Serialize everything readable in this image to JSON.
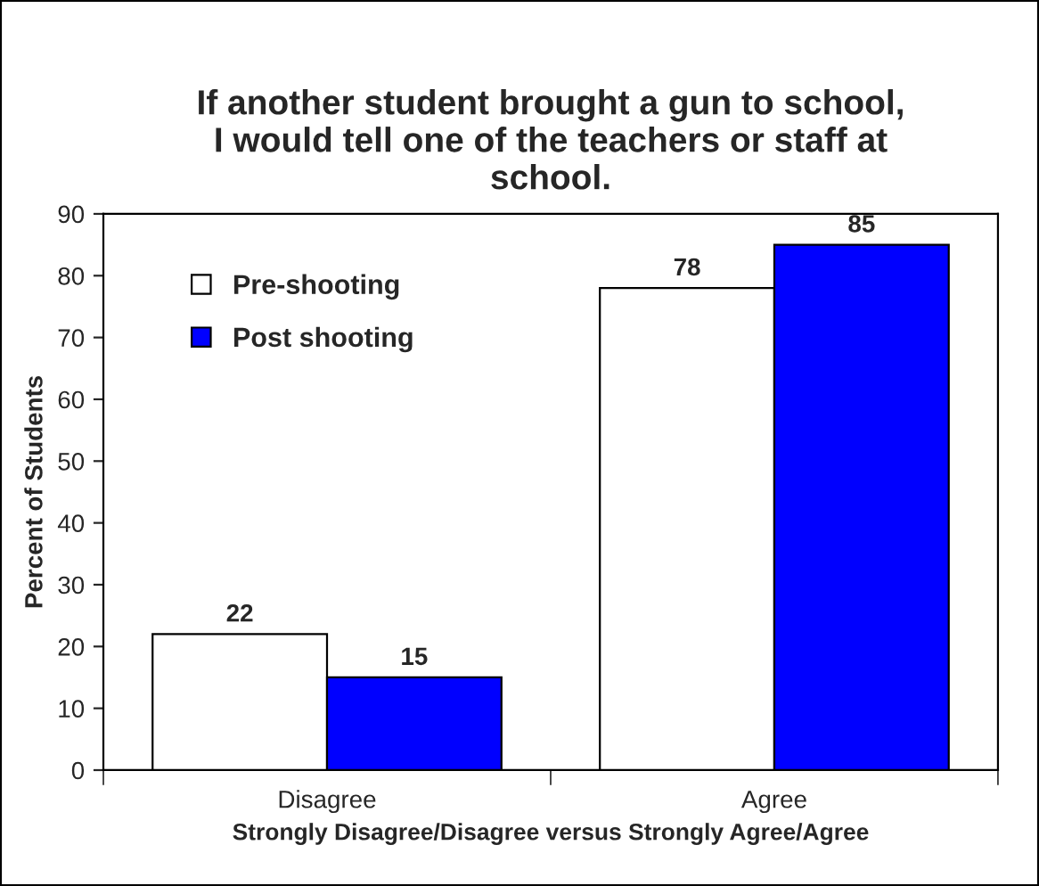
{
  "chart_data": {
    "type": "bar",
    "title": "If another student brought a gun to school,\nI would tell one of the teachers or staff at\nschool.",
    "xlabel": "Strongly Disagree/Disagree versus Strongly Agree/Agree",
    "ylabel": "Percent of Students",
    "categories": [
      "Disagree",
      "Agree"
    ],
    "series": [
      {
        "name": "Pre-shooting",
        "color": "#ffffff",
        "values": [
          22,
          78
        ]
      },
      {
        "name": "Post shooting",
        "color": "#0000ff",
        "values": [
          15,
          85
        ]
      }
    ],
    "ylim": [
      0,
      90
    ],
    "yticks": [
      0,
      10,
      20,
      30,
      40,
      50,
      60,
      70,
      80,
      90
    ],
    "data_labels": true,
    "grid": false,
    "legend": "top left"
  }
}
